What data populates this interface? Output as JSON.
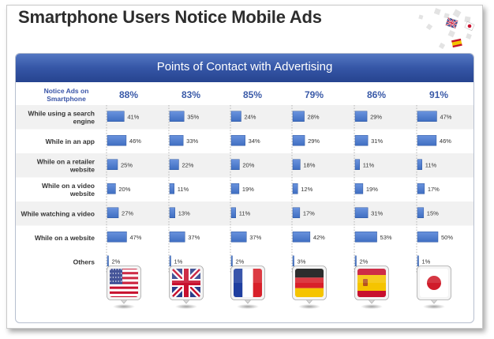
{
  "title": "Smartphone Users Notice Mobile Ads",
  "chart_data": {
    "type": "bar",
    "title": "Points of Contact with Advertising",
    "row_header": "Notice Ads on Smartphone",
    "categories": [
      "While using a search engine",
      "While in an app",
      "While on a retailer website",
      "While on a video website",
      "While watching a video",
      "While on a website",
      "Others"
    ],
    "value_suffix": "%",
    "totals": [
      88,
      83,
      85,
      79,
      86,
      91
    ],
    "series": [
      {
        "flag": "usa-flag-icon",
        "values": [
          41,
          46,
          25,
          20,
          27,
          47,
          2
        ]
      },
      {
        "flag": "uk-flag-icon",
        "values": [
          35,
          33,
          22,
          11,
          13,
          37,
          1
        ]
      },
      {
        "flag": "france-flag-icon",
        "values": [
          24,
          34,
          20,
          19,
          11,
          37,
          2
        ]
      },
      {
        "flag": "germany-flag-icon",
        "values": [
          28,
          29,
          18,
          12,
          17,
          42,
          3
        ]
      },
      {
        "flag": "spain-flag-icon",
        "values": [
          29,
          31,
          11,
          19,
          31,
          53,
          2
        ]
      },
      {
        "flag": "japan-flag-icon",
        "values": [
          47,
          46,
          11,
          17,
          15,
          50,
          1
        ]
      }
    ],
    "bar_color": "#3f6ec1",
    "total_color": "#3a5aa8",
    "header_color": "#3a55a8"
  }
}
